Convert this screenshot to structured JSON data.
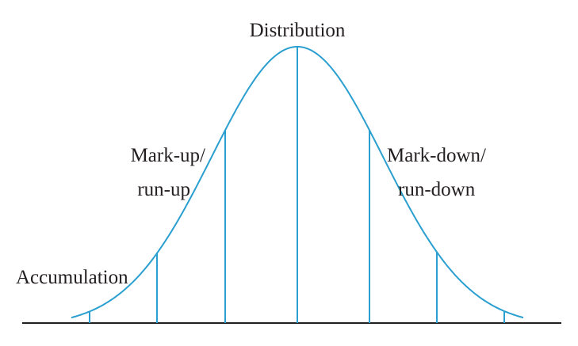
{
  "diagram": {
    "curve_color": "#2a9fd0",
    "baseline_color": "#231f20",
    "labels": {
      "distribution": "Distribution",
      "markup_line1": "Mark-up/",
      "markup_line2": "run-up",
      "markdown_line1": "Mark-down/",
      "markdown_line2": "run-down",
      "accumulation": "Accumulation"
    }
  }
}
